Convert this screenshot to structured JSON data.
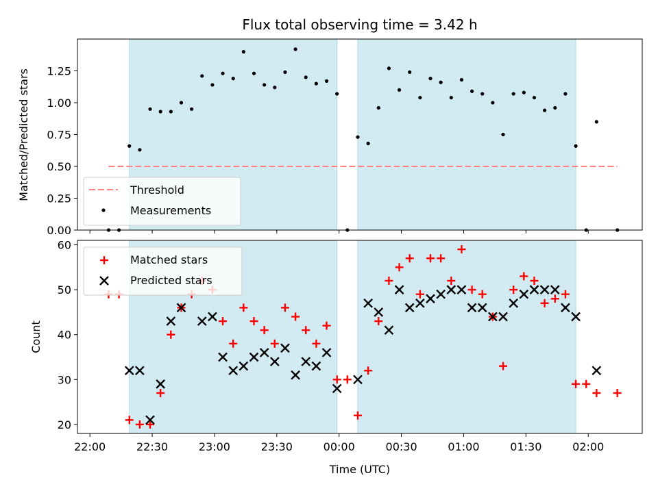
{
  "chart_data": {
    "type": "scatter",
    "title": "Flux total observing time = 3.42 h",
    "xlabel": "Time (UTC)",
    "x_ticks": [
      "22:00",
      "22:30",
      "23:00",
      "23:30",
      "00:00",
      "00:30",
      "01:00",
      "01:30",
      "02:00"
    ],
    "x_tick_minutes": [
      0,
      30,
      60,
      90,
      120,
      150,
      180,
      210,
      240
    ],
    "xlim_minutes": [
      -6,
      266
    ],
    "shaded_intervals_minutes": [
      [
        19,
        119
      ],
      [
        129,
        234
      ]
    ],
    "shade_color": "#add8e6",
    "top_panel": {
      "ylabel": "Matched/Predicted stars",
      "ylim": [
        0,
        1.5
      ],
      "y_ticks": [
        "0.00",
        "0.25",
        "0.50",
        "0.75",
        "1.00",
        "1.25"
      ],
      "y_tick_values": [
        0,
        0.25,
        0.5,
        0.75,
        1.0,
        1.25
      ],
      "threshold": {
        "name": "Threshold",
        "value": 0.5,
        "x_range_minutes": [
          9,
          254
        ],
        "color": "#ff8080"
      },
      "measurements": {
        "name": "Measurements",
        "color": "#000000",
        "x_minutes": [
          9,
          14,
          19,
          24,
          29,
          34,
          39,
          44,
          49,
          54,
          59,
          64,
          69,
          74,
          79,
          84,
          89,
          94,
          99,
          104,
          109,
          114,
          119,
          124,
          129,
          134,
          139,
          144,
          149,
          154,
          159,
          164,
          169,
          174,
          179,
          184,
          189,
          194,
          199,
          204,
          209,
          214,
          219,
          224,
          229,
          234,
          239,
          244,
          254
        ],
        "values": [
          0.0,
          0.0,
          0.66,
          0.63,
          0.95,
          0.93,
          0.93,
          1.0,
          0.95,
          1.21,
          1.14,
          1.23,
          1.19,
          1.4,
          1.23,
          1.14,
          1.12,
          1.24,
          1.42,
          1.2,
          1.15,
          1.17,
          1.07,
          0.0,
          0.73,
          0.68,
          0.96,
          1.27,
          1.1,
          1.24,
          1.04,
          1.19,
          1.16,
          1.04,
          1.18,
          1.09,
          1.07,
          1.0,
          0.75,
          1.07,
          1.08,
          1.04,
          0.94,
          0.96,
          1.07,
          0.66,
          0.0,
          0.85,
          0.0
        ]
      }
    },
    "bottom_panel": {
      "ylabel": "Count",
      "ylim": [
        18,
        61
      ],
      "y_ticks": [
        "20",
        "30",
        "40",
        "50",
        "60"
      ],
      "y_tick_values": [
        20,
        30,
        40,
        50,
        60
      ],
      "series": [
        {
          "name": "Matched stars",
          "marker": "plus",
          "color": "#ff0000",
          "x_minutes": [
            9,
            14,
            19,
            24,
            29,
            34,
            39,
            44,
            49,
            54,
            59,
            64,
            69,
            74,
            79,
            84,
            89,
            94,
            99,
            104,
            109,
            114,
            119,
            124,
            129,
            134,
            139,
            144,
            149,
            154,
            159,
            164,
            169,
            174,
            179,
            184,
            189,
            194,
            199,
            204,
            209,
            214,
            219,
            224,
            229,
            234,
            239,
            244,
            254
          ],
          "values": [
            49,
            49,
            21,
            20,
            20,
            27,
            40,
            46,
            49,
            52,
            50,
            43,
            38,
            46,
            43,
            41,
            38,
            46,
            44,
            41,
            38,
            42,
            30,
            30,
            22,
            32,
            43,
            52,
            55,
            57,
            49,
            57,
            57,
            52,
            59,
            50,
            49,
            44,
            33,
            50,
            53,
            52,
            47,
            48,
            49,
            29,
            29,
            27,
            27
          ]
        },
        {
          "name": "Predicted stars",
          "marker": "x",
          "color": "#000000",
          "x_minutes": [
            19,
            24,
            29,
            34,
            39,
            44,
            54,
            59,
            64,
            69,
            74,
            79,
            84,
            89,
            94,
            99,
            104,
            109,
            114,
            119,
            129,
            134,
            139,
            144,
            149,
            154,
            159,
            164,
            169,
            174,
            179,
            184,
            189,
            194,
            199,
            204,
            209,
            214,
            219,
            224,
            229,
            234,
            244
          ],
          "values": [
            32,
            32,
            21,
            29,
            43,
            46,
            43,
            44,
            35,
            32,
            33,
            35,
            36,
            34,
            37,
            31,
            34,
            33,
            36,
            28,
            30,
            47,
            45,
            41,
            50,
            46,
            47,
            48,
            49,
            50,
            50,
            46,
            46,
            44,
            44,
            47,
            49,
            50,
            50,
            50,
            46,
            44,
            32
          ]
        }
      ]
    }
  }
}
